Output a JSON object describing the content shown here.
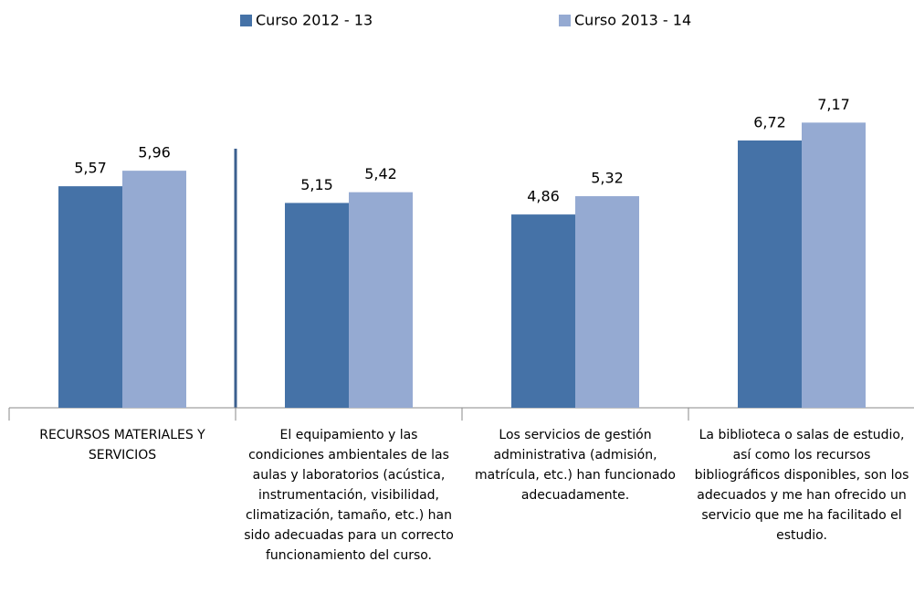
{
  "chart_data": {
    "type": "bar",
    "categories": [
      "RECURSOS MATERIALES Y SERVICIOS",
      "El equipamiento y las condiciones ambientales de las aulas y laboratorios (acústica, instrumentación, visibilidad, climatización, tamaño, etc.) han sido adecuadas para un correcto funcionamiento del curso.",
      "Los servicios de gestión administrativa (admisión, matrícula, etc.) han funcionado adecuadamente.",
      "La biblioteca o salas de estudio, así como los recursos bibliográficos disponibles, son los adecuados y me han ofrecido un servicio que me ha facilitado el estudio."
    ],
    "series": [
      {
        "name": "Curso 2012 - 13",
        "color": "#4572a7",
        "values": [
          5.57,
          5.15,
          4.86,
          6.72
        ],
        "value_labels": [
          "5,57",
          "5,15",
          "4,86",
          "6,72"
        ]
      },
      {
        "name": "Curso 2013 - 14",
        "color": "#95aad2",
        "values": [
          5.96,
          5.42,
          5.32,
          7.17
        ],
        "value_labels": [
          "5,96",
          "5,42",
          "5,32",
          "7,17"
        ]
      }
    ],
    "ylim": [
      0,
      10
    ],
    "legend": "top"
  }
}
